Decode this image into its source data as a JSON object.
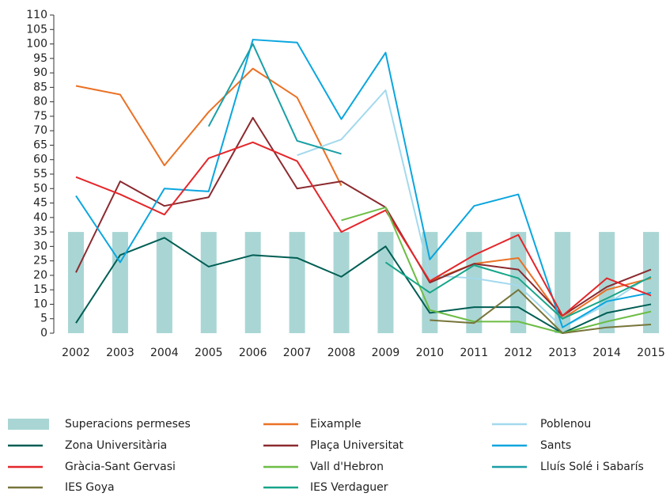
{
  "chart_data": {
    "type": "line",
    "categories": [
      "2002",
      "2003",
      "2004",
      "2005",
      "2006",
      "2007",
      "2008",
      "2009",
      "2010",
      "2011",
      "2012",
      "2013",
      "2014",
      "2015"
    ],
    "ylim": [
      0,
      110
    ],
    "yticks": [
      0,
      5,
      10,
      15,
      20,
      25,
      30,
      35,
      40,
      45,
      50,
      55,
      60,
      65,
      70,
      75,
      80,
      85,
      90,
      95,
      100,
      105,
      110
    ],
    "legend": "bottom",
    "series": [
      {
        "name": "Superacions permeses",
        "type": "bar",
        "color": "#a9d6d4",
        "values": [
          35,
          35,
          35,
          35,
          35,
          35,
          35,
          35,
          35,
          35,
          35,
          35,
          35,
          35
        ]
      },
      {
        "name": "Eixample",
        "color": "#ea7125",
        "values": [
          85.5,
          82.5,
          58,
          76.5,
          91.5,
          81.5,
          51,
          null,
          18,
          24,
          26,
          5,
          15,
          19
        ]
      },
      {
        "name": "Poblenou",
        "color": "#a3d9ee",
        "values": [
          null,
          null,
          null,
          null,
          null,
          61.5,
          67,
          84,
          20,
          19,
          16.5,
          2,
          10,
          20
        ]
      },
      {
        "name": "Zona Universitària",
        "color": "#005e54",
        "values": [
          3.5,
          27,
          33,
          23,
          27,
          26,
          19.5,
          30,
          7,
          9,
          9,
          0,
          7,
          10
        ]
      },
      {
        "name": "Plaça Universitat",
        "color": "#8b2a2f",
        "values": [
          21,
          52.5,
          44,
          47,
          74.5,
          50,
          52.5,
          43.5,
          17.5,
          24,
          22,
          6,
          16,
          22
        ]
      },
      {
        "name": "Sants",
        "color": "#0aa6df",
        "values": [
          47.5,
          24.5,
          50,
          49,
          101.5,
          100.5,
          74,
          97,
          25.5,
          44,
          48,
          2,
          11,
          14
        ]
      },
      {
        "name": "Gràcia-Sant Gervasi",
        "color": "#e4262a",
        "values": [
          54,
          48,
          41,
          60.5,
          66,
          59.5,
          35,
          42.5,
          18,
          27,
          34,
          6,
          19,
          13
        ]
      },
      {
        "name": "Vall d'Hebron",
        "color": "#6cbd45",
        "values": [
          null,
          null,
          null,
          null,
          null,
          null,
          39,
          43.5,
          8,
          4,
          4,
          0,
          4,
          7.5
        ]
      },
      {
        "name": "Lluís Solé i Sabarís",
        "color": "#1a9fa6",
        "values": [
          null,
          null,
          null,
          71.5,
          100,
          66.5,
          62,
          null,
          null,
          null,
          null,
          null,
          null,
          null
        ]
      },
      {
        "name": "IES Goya",
        "color": "#77753a",
        "values": [
          null,
          null,
          null,
          null,
          null,
          null,
          null,
          null,
          4.5,
          3.5,
          15,
          0,
          2,
          3
        ]
      },
      {
        "name": "IES Verdaguer",
        "color": "#16a589",
        "values": [
          null,
          null,
          null,
          null,
          null,
          null,
          null,
          24.5,
          14,
          23.5,
          19,
          5,
          12,
          19.5
        ]
      }
    ]
  }
}
